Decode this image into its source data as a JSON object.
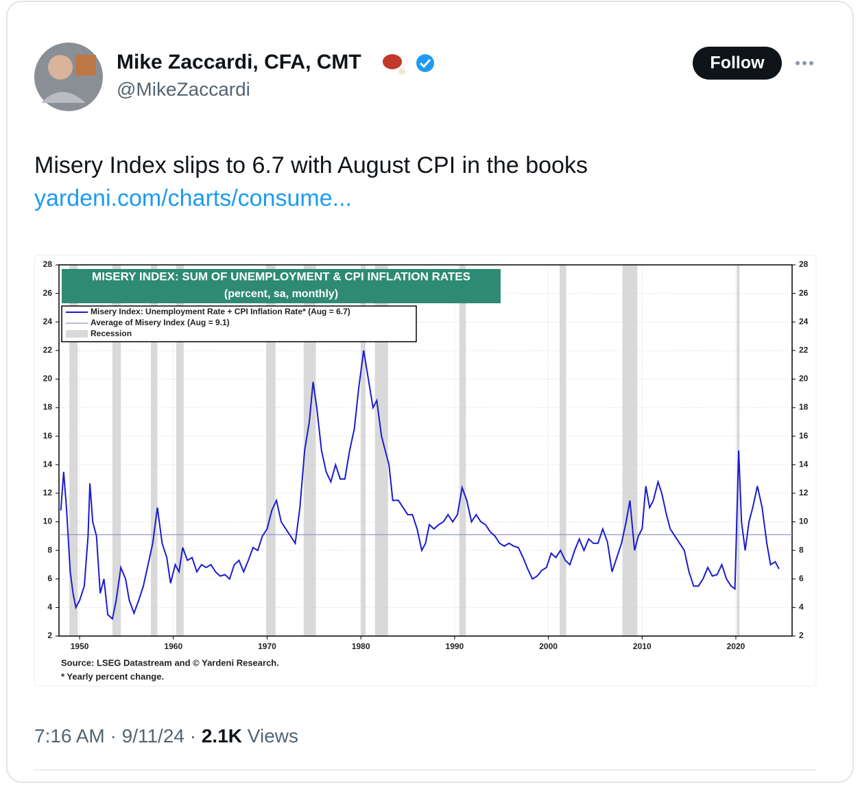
{
  "tweet": {
    "name": "Mike Zaccardi, CFA, CMT",
    "handle": "@MikeZaccardi",
    "follow": "Follow",
    "text": "Misery Index slips to 6.7 with August CPI in the books",
    "link": "yardeni.com/charts/consume...",
    "time": "7:16 AM",
    "separator": "·",
    "date": "9/11/24",
    "views_count": "2.1K",
    "views_label": "Views"
  },
  "chart_data": {
    "type": "line",
    "title": "MISERY INDEX: SUM OF UNEMPLOYMENT & CPI INFLATION RATES",
    "subtitle": "(percent, sa, monthly)",
    "notes": [
      "Source: LSEG Datastream and © Yardeni Research.",
      "* Yearly percent change."
    ],
    "xlim": [
      1947.8,
      2026
    ],
    "xticks": [
      1950,
      1960,
      1970,
      1980,
      1990,
      2000,
      2010,
      2020
    ],
    "ylim": [
      2,
      28
    ],
    "yticks": [
      2,
      4,
      6,
      8,
      10,
      12,
      14,
      16,
      18,
      20,
      22,
      24,
      26,
      28
    ],
    "grid": true,
    "recession_label": "Recession",
    "recession_color": "#d9d9d9",
    "recessions": [
      [
        1948.9,
        1949.8
      ],
      [
        1953.5,
        1954.4
      ],
      [
        1957.6,
        1958.3
      ],
      [
        1960.3,
        1961.1
      ],
      [
        1969.9,
        1970.9
      ],
      [
        1973.9,
        1975.2
      ],
      [
        1980.0,
        1980.5
      ],
      [
        1981.5,
        1982.9
      ],
      [
        1990.5,
        1991.2
      ],
      [
        2001.2,
        2001.9
      ],
      [
        2007.9,
        2009.5
      ],
      [
        2020.1,
        2020.4
      ]
    ],
    "average": {
      "name": "Average of Misery Index (Aug = 9.1)",
      "value": 9.1,
      "color": "#8f95c8"
    },
    "x": [
      1948.0,
      1948.3,
      1948.6,
      1949.0,
      1949.3,
      1949.6,
      1950.0,
      1950.5,
      1950.9,
      1951.1,
      1951.4,
      1951.8,
      1952.2,
      1952.6,
      1953.0,
      1953.5,
      1953.9,
      1954.4,
      1954.9,
      1955.3,
      1955.8,
      1956.3,
      1956.8,
      1957.3,
      1957.8,
      1958.3,
      1958.8,
      1959.3,
      1959.7,
      1960.2,
      1960.6,
      1961.0,
      1961.5,
      1962.0,
      1962.5,
      1963.0,
      1963.5,
      1964.0,
      1964.5,
      1965.0,
      1965.5,
      1966.0,
      1966.5,
      1967.0,
      1967.5,
      1968.0,
      1968.5,
      1969.0,
      1969.5,
      1970.0,
      1970.5,
      1971.0,
      1971.5,
      1972.0,
      1972.5,
      1973.0,
      1973.5,
      1974.0,
      1974.5,
      1974.9,
      1975.3,
      1975.8,
      1976.3,
      1976.8,
      1977.3,
      1977.8,
      1978.3,
      1978.8,
      1979.3,
      1979.8,
      1980.3,
      1980.8,
      1981.3,
      1981.7,
      1982.2,
      1982.6,
      1983.0,
      1983.4,
      1984.0,
      1984.5,
      1985.0,
      1985.5,
      1986.0,
      1986.5,
      1986.9,
      1987.3,
      1987.8,
      1988.3,
      1988.8,
      1989.3,
      1989.8,
      1990.3,
      1990.8,
      1991.3,
      1991.8,
      1992.3,
      1992.8,
      1993.3,
      1993.8,
      1994.3,
      1994.8,
      1995.3,
      1995.8,
      1996.3,
      1996.8,
      1997.3,
      1997.8,
      1998.3,
      1998.8,
      1999.3,
      1999.8,
      2000.3,
      2000.8,
      2001.3,
      2001.8,
      2002.3,
      2002.8,
      2003.3,
      2003.8,
      2004.3,
      2004.8,
      2005.3,
      2005.8,
      2006.3,
      2006.8,
      2007.3,
      2007.8,
      2008.3,
      2008.7,
      2009.2,
      2009.6,
      2010.0,
      2010.4,
      2010.8,
      2011.2,
      2011.7,
      2012.1,
      2012.6,
      2013.0,
      2013.5,
      2014.0,
      2014.5,
      2015.0,
      2015.5,
      2016.0,
      2016.5,
      2017.0,
      2017.5,
      2018.0,
      2018.5,
      2019.0,
      2019.5,
      2019.9,
      2020.3,
      2020.6,
      2021.0,
      2021.4,
      2021.8,
      2022.3,
      2022.8,
      2023.3,
      2023.7,
      2024.2,
      2024.6
    ],
    "series": [
      {
        "name": "Misery Index: Unemployment Rate + CPI Inflation Rate* (Aug = 6.7)",
        "color": "#1a1ad0",
        "values": [
          10.8,
          13.5,
          11,
          6.5,
          5,
          4,
          4.5,
          5.5,
          9,
          12.7,
          10,
          9,
          5,
          6,
          3.5,
          3.2,
          4.5,
          6.8,
          6,
          4.5,
          3.6,
          4.5,
          5.5,
          7,
          8.5,
          11,
          8.5,
          7.5,
          5.7,
          7,
          6.5,
          8.2,
          7.3,
          7.5,
          6.5,
          7,
          6.8,
          7,
          6.5,
          6.2,
          6.3,
          6,
          7,
          7.3,
          6.5,
          7.3,
          8.2,
          8,
          9,
          9.5,
          10.8,
          11.5,
          10,
          9.5,
          9,
          8.5,
          11,
          15,
          17,
          19.8,
          18,
          15,
          13.5,
          12.8,
          14,
          13,
          13,
          15,
          16.5,
          19.5,
          22,
          20,
          18,
          18.5,
          16,
          15,
          14,
          11.5,
          11.5,
          11,
          10.5,
          10.5,
          9.5,
          8,
          8.5,
          9.8,
          9.5,
          9.8,
          10,
          10.5,
          10,
          10.5,
          12.4,
          11.5,
          10,
          10.5,
          10,
          9.8,
          9.3,
          9,
          8.5,
          8.3,
          8.5,
          8.3,
          8.2,
          7.5,
          6.7,
          6,
          6.2,
          6.6,
          6.8,
          7.8,
          7.5,
          8,
          7.3,
          7,
          8,
          8.8,
          8,
          8.8,
          8.5,
          8.5,
          9.5,
          8.6,
          6.5,
          7.5,
          8.5,
          10,
          11.5,
          8,
          9,
          9.5,
          12.5,
          11,
          11.5,
          12.8,
          12,
          10.5,
          9.5,
          9,
          8.5,
          8,
          6.5,
          5.5,
          5.5,
          6,
          6.8,
          6.2,
          6.3,
          7,
          6,
          5.5,
          5.3,
          15,
          10,
          8,
          10,
          11,
          12.5,
          11,
          8.5,
          7,
          7.2,
          6.7
        ]
      }
    ]
  }
}
